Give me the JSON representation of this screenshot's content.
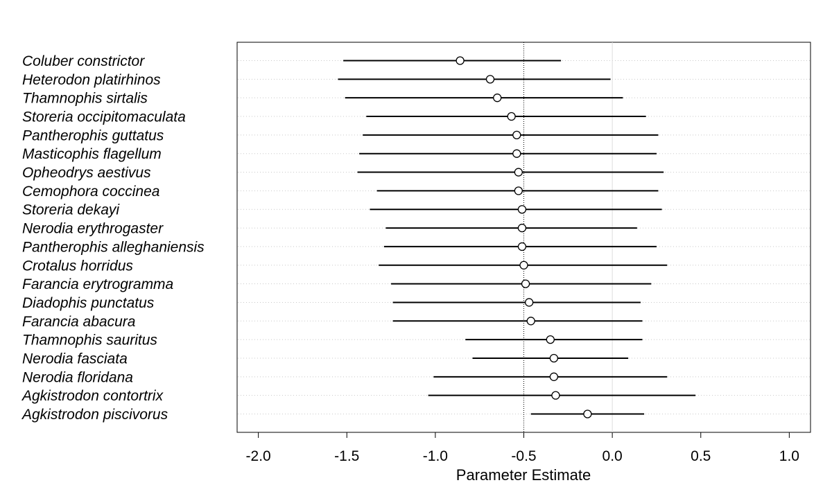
{
  "chart_data": {
    "type": "interval",
    "xlabel": "Parameter Estimate",
    "ylabel": "",
    "xlim": [
      -2.12,
      1.12
    ],
    "xticks": [
      -2.0,
      -1.5,
      -1.0,
      -0.5,
      0.0,
      0.5,
      1.0
    ],
    "xtick_labels": [
      "-2.0",
      "-1.5",
      "-1.0",
      "-0.5",
      "0.0",
      "0.5",
      "1.0"
    ],
    "reference_lines": [
      {
        "x": -0.5,
        "style": "dotted"
      },
      {
        "x": 0.0,
        "style": "solid-light"
      }
    ],
    "grid": "horizontal-dotted",
    "categories": [
      "Coluber constrictor",
      "Heterodon platirhinos",
      "Thamnophis sirtalis",
      "Storeria occipitomaculata",
      "Pantherophis guttatus",
      "Masticophis flagellum",
      "Opheodrys aestivus",
      "Cemophora coccinea",
      "Storeria dekayi",
      "Nerodia erythrogaster",
      "Pantherophis alleghaniensis",
      "Crotalus horridus",
      "Farancia erytrogramma",
      "Diadophis punctatus",
      "Farancia abacura",
      "Thamnophis sauritus",
      "Nerodia fasciata",
      "Nerodia floridana",
      "Agkistrodon contortrix",
      "Agkistrodon piscivorus"
    ],
    "estimates": [
      -0.86,
      -0.69,
      -0.65,
      -0.57,
      -0.54,
      -0.54,
      -0.53,
      -0.53,
      -0.51,
      -0.51,
      -0.51,
      -0.5,
      -0.49,
      -0.47,
      -0.46,
      -0.35,
      -0.33,
      -0.33,
      -0.32,
      -0.14
    ],
    "lower": [
      -1.52,
      -1.55,
      -1.51,
      -1.39,
      -1.41,
      -1.43,
      -1.44,
      -1.33,
      -1.37,
      -1.28,
      -1.29,
      -1.32,
      -1.25,
      -1.24,
      -1.24,
      -0.83,
      -0.79,
      -1.01,
      -1.04,
      -0.46
    ],
    "upper": [
      -0.29,
      -0.01,
      0.06,
      0.19,
      0.26,
      0.25,
      0.29,
      0.26,
      0.28,
      0.14,
      0.25,
      0.31,
      0.22,
      0.16,
      0.17,
      0.17,
      0.09,
      0.31,
      0.47,
      0.18
    ]
  }
}
